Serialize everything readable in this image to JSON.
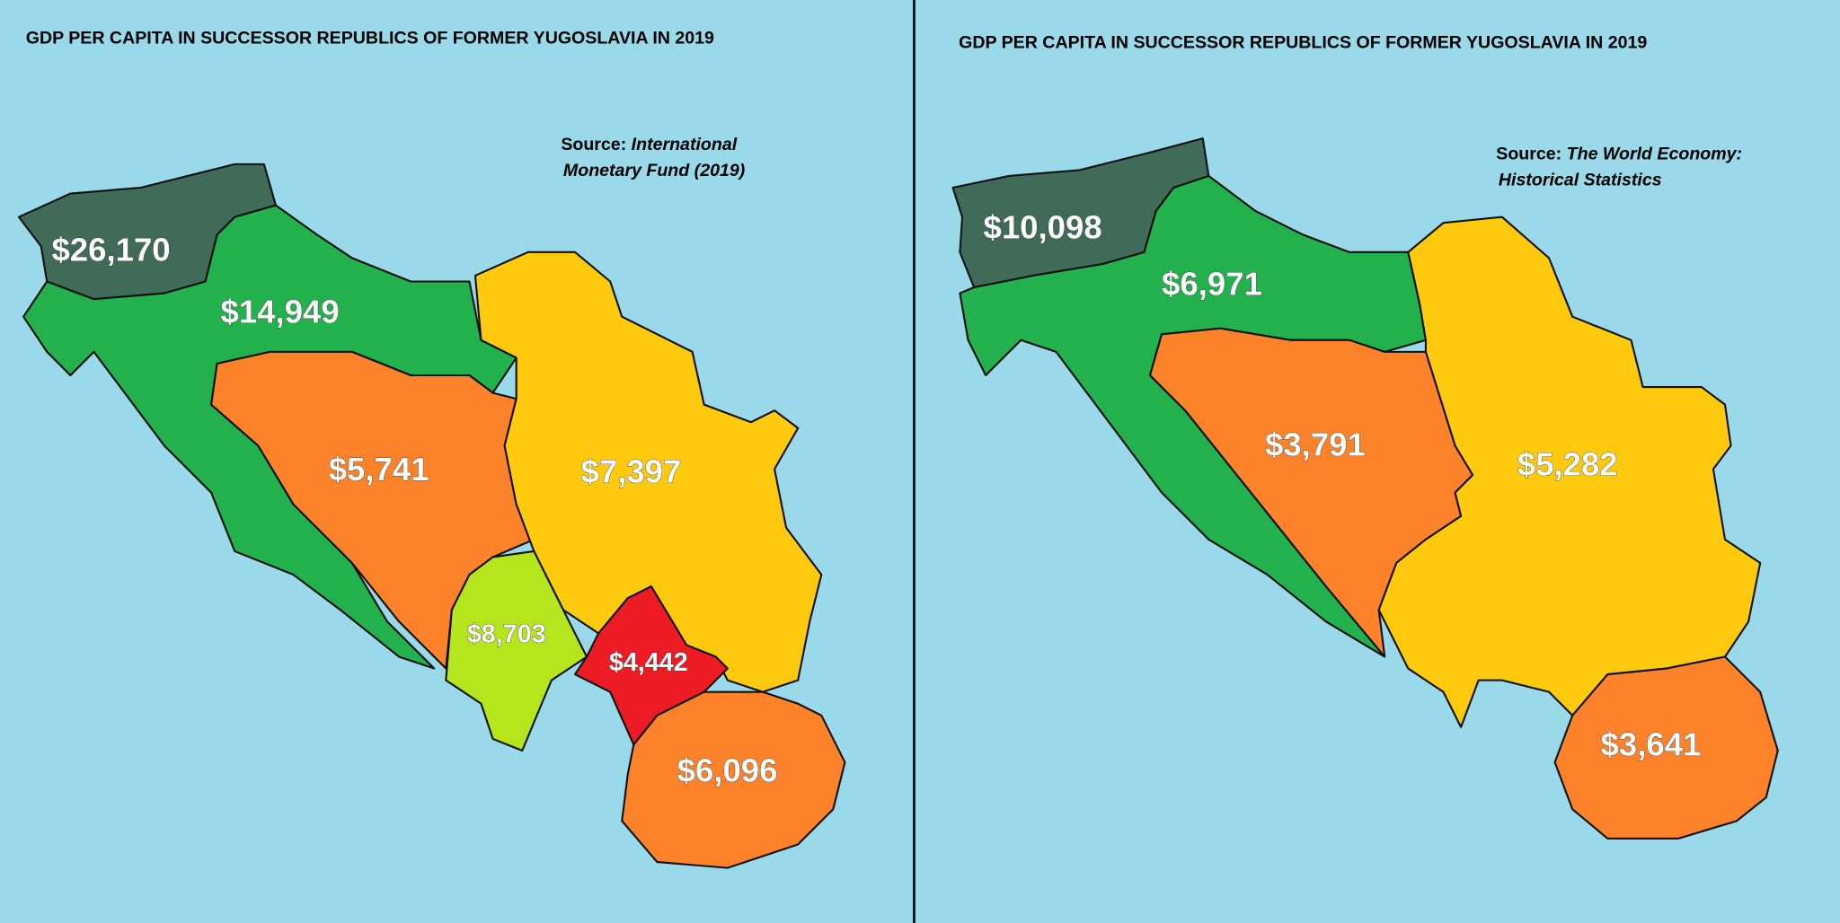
{
  "panels": [
    {
      "title": "GDP PER CAPITA IN SUCCESSOR REPUBLICS OF FORMER YUGOSLAVIA IN 2019",
      "source": {
        "prefix": "Source:",
        "lines": [
          "International",
          "Monetary Fund (2019)"
        ]
      },
      "regions": [
        {
          "label": "$26,170"
        },
        {
          "label": "$14,949"
        },
        {
          "label": "$5,741"
        },
        {
          "label": "$7,397"
        },
        {
          "label": "$8,703"
        },
        {
          "label": "$4,442"
        },
        {
          "label": "$6,096"
        }
      ]
    },
    {
      "title": "GDP PER CAPITA IN SUCCESSOR REPUBLICS OF FORMER YUGOSLAVIA IN 2019",
      "source": {
        "prefix": "Source:",
        "lines": [
          "The World Economy:",
          "Historical Statistics"
        ]
      },
      "regions": [
        {
          "label": "$10,098"
        },
        {
          "label": "$6,971"
        },
        {
          "label": "$3,791"
        },
        {
          "label": "$5,282"
        },
        {
          "label": "$3,641"
        }
      ]
    }
  ]
}
